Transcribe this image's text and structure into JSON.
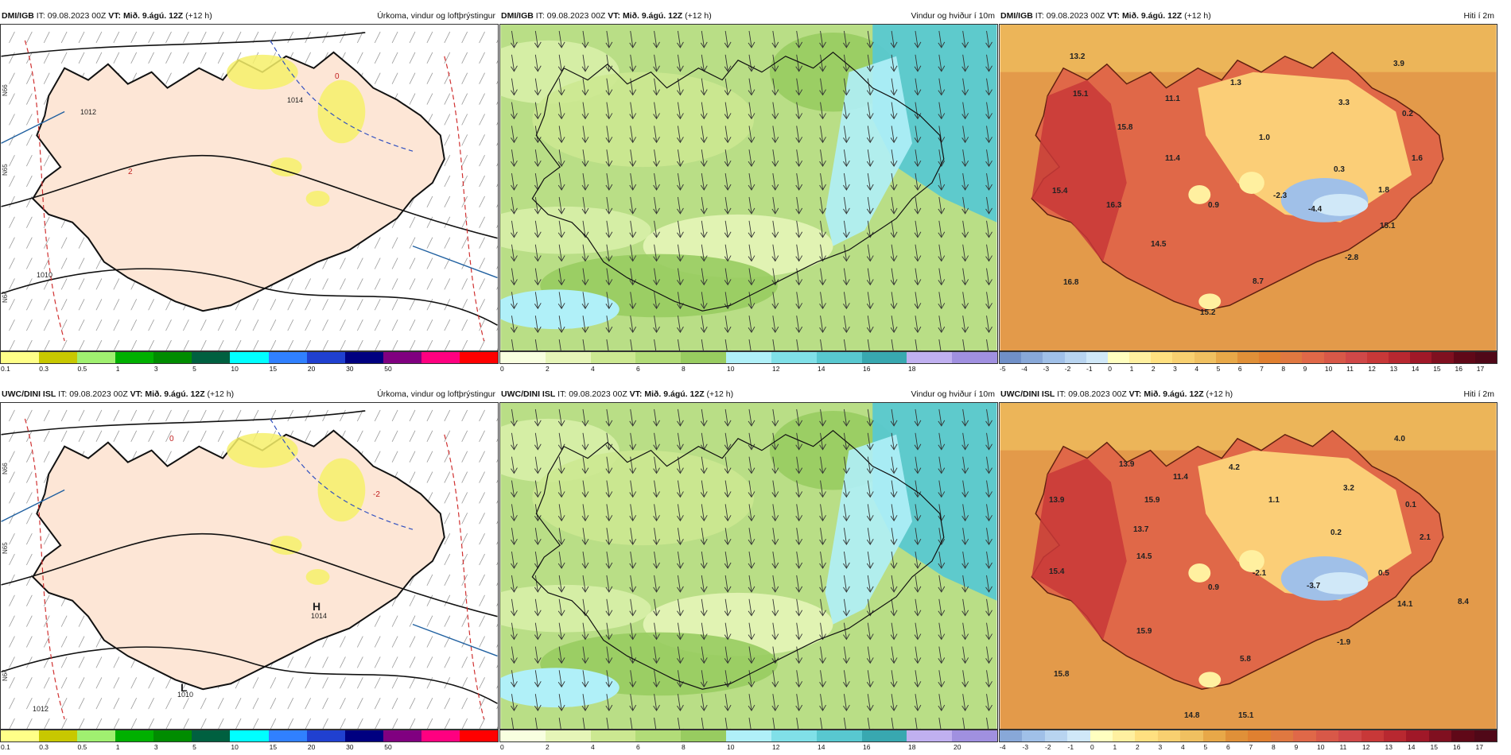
{
  "panels": [
    {
      "id": "dmi-precip",
      "source": "DMI/IGB",
      "it_label": "IT:",
      "it": "09.08.2023 00Z",
      "vt_label": "VT:",
      "vt": "Mið. 9.ágú. 12Z",
      "lead": "(+12 h)",
      "title": "Úrkoma, vindur og loftþrýstingur",
      "scale": "precip",
      "lat_labels": [
        "N66",
        "N65",
        "N64"
      ],
      "map_labels": [
        {
          "text": "1014",
          "kind": "isobar"
        },
        {
          "text": "1012",
          "kind": "isobar"
        },
        {
          "text": "1010",
          "kind": "isobar"
        },
        {
          "text": "0",
          "kind": "isotherm"
        },
        {
          "text": "2",
          "kind": "isotherm"
        }
      ]
    },
    {
      "id": "dmi-wind",
      "source": "DMI/IGB",
      "it_label": "IT:",
      "it": "09.08.2023 00Z",
      "vt_label": "VT:",
      "vt": "Mið. 9.ágú. 12Z",
      "lead": "(+12 h)",
      "title": "Vindur og hviður í 10m",
      "scale": "wind_dmi",
      "map_labels": []
    },
    {
      "id": "dmi-temp",
      "source": "DMI/IGB",
      "it_label": "IT:",
      "it": "09.08.2023 00Z",
      "vt_label": "VT:",
      "vt": "Mið. 9.ágú. 12Z",
      "lead": "(+12 h)",
      "title": "Hiti í 2m",
      "scale": "temp_dmi",
      "map_labels": [
        {
          "text": "13.2"
        },
        {
          "text": "15.1"
        },
        {
          "text": "15.8"
        },
        {
          "text": "11.1"
        },
        {
          "text": "1.3"
        },
        {
          "text": "3.9"
        },
        {
          "text": "3.3"
        },
        {
          "text": "0.2"
        },
        {
          "text": "1.0"
        },
        {
          "text": "11.4"
        },
        {
          "text": "1.6"
        },
        {
          "text": "0.3"
        },
        {
          "text": "15.4"
        },
        {
          "text": "1.8"
        },
        {
          "text": "16.3"
        },
        {
          "text": "0.9"
        },
        {
          "text": "-2.3"
        },
        {
          "text": "-4.4"
        },
        {
          "text": "15.1"
        },
        {
          "text": "14.5"
        },
        {
          "text": "-2.8"
        },
        {
          "text": "16.8"
        },
        {
          "text": "8.7"
        },
        {
          "text": "15.2"
        }
      ]
    },
    {
      "id": "uwc-precip",
      "source": "UWC/DINI ISL",
      "it_label": "IT:",
      "it": "09.08.2023 00Z",
      "vt_label": "VT:",
      "vt": "Mið. 9.ágú. 12Z",
      "lead": "(+12 h)",
      "title": "Úrkoma, vindur og loftþrýstingur",
      "scale": "precip",
      "lat_labels": [
        "N66",
        "N65",
        "N64"
      ],
      "map_labels": [
        {
          "text": "H",
          "kind": "pressure-center"
        },
        {
          "text": "1014",
          "kind": "isobar"
        },
        {
          "text": "L",
          "kind": "pressure-center"
        },
        {
          "text": "1010",
          "kind": "isobar"
        },
        {
          "text": "1012",
          "kind": "isobar"
        },
        {
          "text": "0",
          "kind": "isotherm"
        },
        {
          "text": "-2",
          "kind": "isotherm"
        }
      ]
    },
    {
      "id": "uwc-wind",
      "source": "UWC/DINI ISL",
      "it_label": "IT:",
      "it": "09.08.2023 00Z",
      "vt_label": "VT:",
      "vt": "Mið. 9.ágú. 12Z",
      "lead": "(+12 h)",
      "title": "Vindur og hviður í 10m",
      "scale": "wind_uwc",
      "map_labels": []
    },
    {
      "id": "uwc-temp",
      "source": "UWC/DINI ISL",
      "it_label": "IT:",
      "it": "09.08.2023 00Z",
      "vt_label": "VT:",
      "vt": "Mið. 9.ágú. 12Z",
      "lead": "(+12 h)",
      "title": "Hiti í 2m",
      "scale": "temp_uwc",
      "map_labels": [
        {
          "text": "4.0"
        },
        {
          "text": "13.9"
        },
        {
          "text": "11.4"
        },
        {
          "text": "4.2"
        },
        {
          "text": "3.2"
        },
        {
          "text": "13.9"
        },
        {
          "text": "15.9"
        },
        {
          "text": "1.1"
        },
        {
          "text": "0.1"
        },
        {
          "text": "13.7"
        },
        {
          "text": "0.2"
        },
        {
          "text": "2.1"
        },
        {
          "text": "14.5"
        },
        {
          "text": "15.4"
        },
        {
          "text": "0.9"
        },
        {
          "text": "-2.1"
        },
        {
          "text": "0.5"
        },
        {
          "text": "-3.7"
        },
        {
          "text": "8.4"
        },
        {
          "text": "14.1"
        },
        {
          "text": "15.9"
        },
        {
          "text": "-1.9"
        },
        {
          "text": "5.8"
        },
        {
          "text": "15.8"
        },
        {
          "text": "14.8"
        },
        {
          "text": "15.1"
        }
      ]
    }
  ],
  "scales": {
    "precip": {
      "colors": [
        "#ffff88",
        "#c8c800",
        "#a0f070",
        "#00b000",
        "#008c00",
        "#006040",
        "#00ffff",
        "#3080ff",
        "#2040d0",
        "#000080",
        "#800080",
        "#ff0080",
        "#ff0000"
      ],
      "ticks": [
        "0.1",
        "0.3",
        "0.5",
        "1",
        "3",
        "5",
        "10",
        "15",
        "20",
        "30",
        "50"
      ]
    },
    "wind_dmi": {
      "colors": [
        "#f8ffe0",
        "#e6f5b8",
        "#cce891",
        "#b2dc78",
        "#98cc60",
        "#b0f0f8",
        "#80e0e8",
        "#58c8d0",
        "#38a8b0",
        "#c0b0f0",
        "#a090e0"
      ],
      "ticks": [
        "0",
        "2",
        "4",
        "6",
        "8",
        "10",
        "12",
        "14",
        "16",
        "18"
      ]
    },
    "wind_uwc": {
      "colors": [
        "#f8ffe0",
        "#e6f5b8",
        "#cce891",
        "#b2dc78",
        "#98cc60",
        "#b0f0f8",
        "#80e0e8",
        "#58c8d0",
        "#38a8b0",
        "#c0b0f0",
        "#a090e0"
      ],
      "ticks": [
        "0",
        "2",
        "4",
        "6",
        "8",
        "10",
        "12",
        "14",
        "16",
        "18",
        "20"
      ]
    },
    "temp_dmi": {
      "colors": [
        "#7090c8",
        "#88a8d8",
        "#a0c0e8",
        "#b8d4f0",
        "#d0e8f8",
        "#ffffc0",
        "#fff0a0",
        "#ffe080",
        "#f8d070",
        "#f0c060",
        "#e8a848",
        "#e09038",
        "#e08030",
        "#e07840",
        "#e06848",
        "#d85848",
        "#d04848",
        "#c83838",
        "#b82830",
        "#a01828",
        "#801020",
        "#600818",
        "#500818"
      ],
      "ticks": [
        "-5",
        "-4",
        "-3",
        "-2",
        "-1",
        "0",
        "1",
        "2",
        "3",
        "4",
        "5",
        "6",
        "7",
        "8",
        "9",
        "10",
        "11",
        "12",
        "13",
        "14",
        "15",
        "16",
        "17"
      ]
    },
    "temp_uwc": {
      "colors": [
        "#88a8d8",
        "#a0c0e8",
        "#b8d4f0",
        "#d0e8f8",
        "#ffffc0",
        "#fff0a0",
        "#ffe080",
        "#f8d070",
        "#f0c060",
        "#e8a848",
        "#e09038",
        "#e08030",
        "#e07840",
        "#e06848",
        "#d85848",
        "#d04848",
        "#c83838",
        "#b82830",
        "#a01828",
        "#801020",
        "#600818",
        "#500818"
      ],
      "ticks": [
        "-4",
        "-3",
        "-2",
        "-1",
        "0",
        "1",
        "2",
        "3",
        "4",
        "5",
        "6",
        "7",
        "8",
        "9",
        "10",
        "11",
        "12",
        "13",
        "14",
        "15",
        "16",
        "17"
      ]
    }
  }
}
